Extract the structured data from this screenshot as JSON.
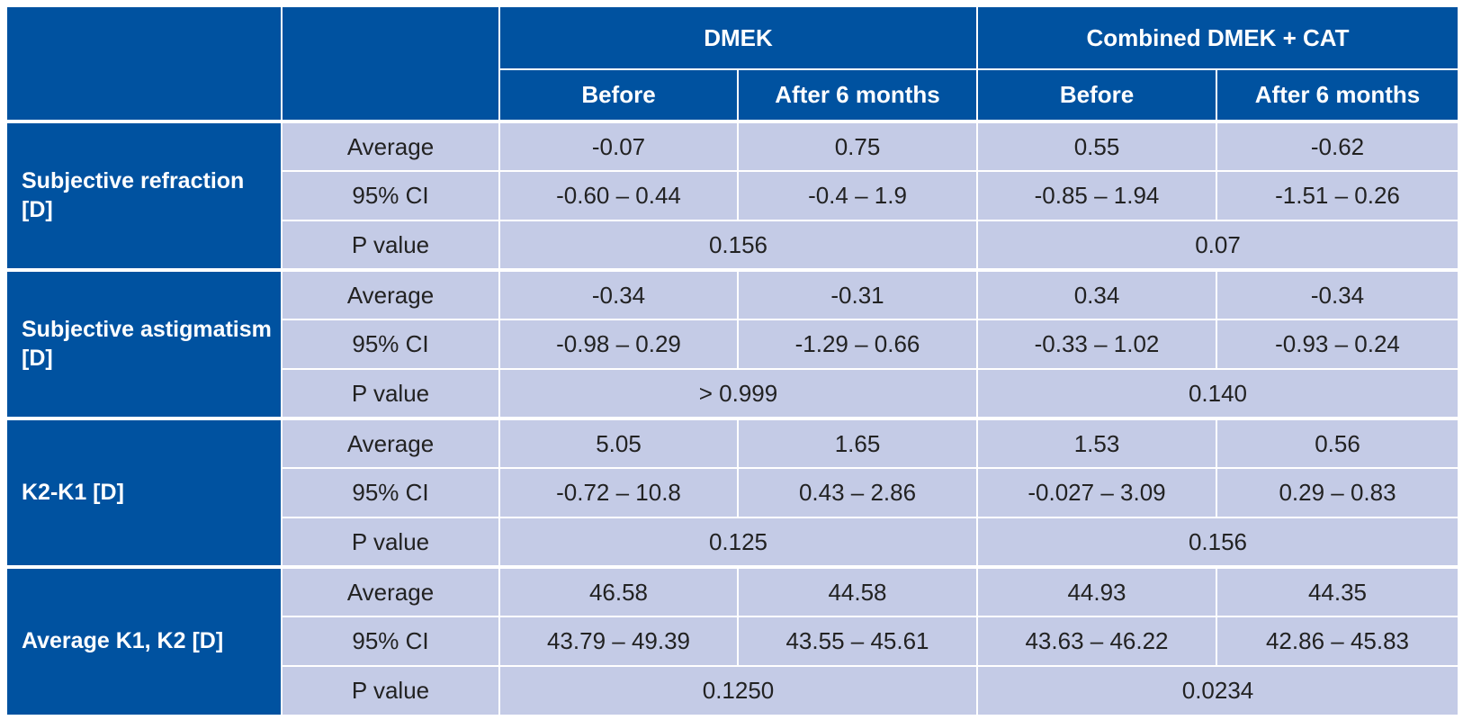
{
  "header": {
    "groups": [
      "DMEK",
      "Combined DMEK + CAT"
    ],
    "subcolumns": [
      "Before",
      "After 6 months",
      "Before",
      "After 6 months"
    ]
  },
  "rows": [
    {
      "label": "Subjective refraction [D]",
      "average": [
        "-0.07",
        "0.75",
        "0.55",
        "-0.62"
      ],
      "ci": [
        "-0.60 – 0.44",
        "-0.4 – 1.9",
        "-0.85 – 1.94",
        "-1.51 – 0.26"
      ],
      "p_value": [
        "0.156",
        "0.07"
      ]
    },
    {
      "label": "Subjective astigmatism [D]",
      "average": [
        "-0.34",
        "-0.31",
        "0.34",
        "-0.34"
      ],
      "ci": [
        "-0.98 – 0.29",
        "-1.29 – 0.66",
        "-0.33 – 1.02",
        "-0.93 – 0.24"
      ],
      "p_value": [
        "> 0.999",
        "0.140"
      ]
    },
    {
      "label": "K2-K1 [D]",
      "average": [
        "5.05",
        "1.65",
        "1.53",
        "0.56"
      ],
      "ci": [
        "-0.72 – 10.8",
        "0.43 – 2.86",
        "-0.027 – 3.09",
        "0.29 – 0.83"
      ],
      "p_value": [
        "0.125",
        "0.156"
      ]
    },
    {
      "label": "Average K1, K2 [D]",
      "average": [
        "46.58",
        "44.58",
        "44.93",
        "44.35"
      ],
      "ci": [
        "43.79 – 49.39",
        "43.55 – 45.61",
        "43.63 – 46.22",
        "42.86 – 45.83"
      ],
      "p_value": [
        "0.1250",
        "0.0234"
      ]
    }
  ],
  "metric_labels": {
    "average": "Average",
    "ci": "95% CI",
    "p_value": "P value"
  },
  "colors": {
    "header_blue": "#0052a0",
    "cell_lavender": "#c4cbe6"
  }
}
